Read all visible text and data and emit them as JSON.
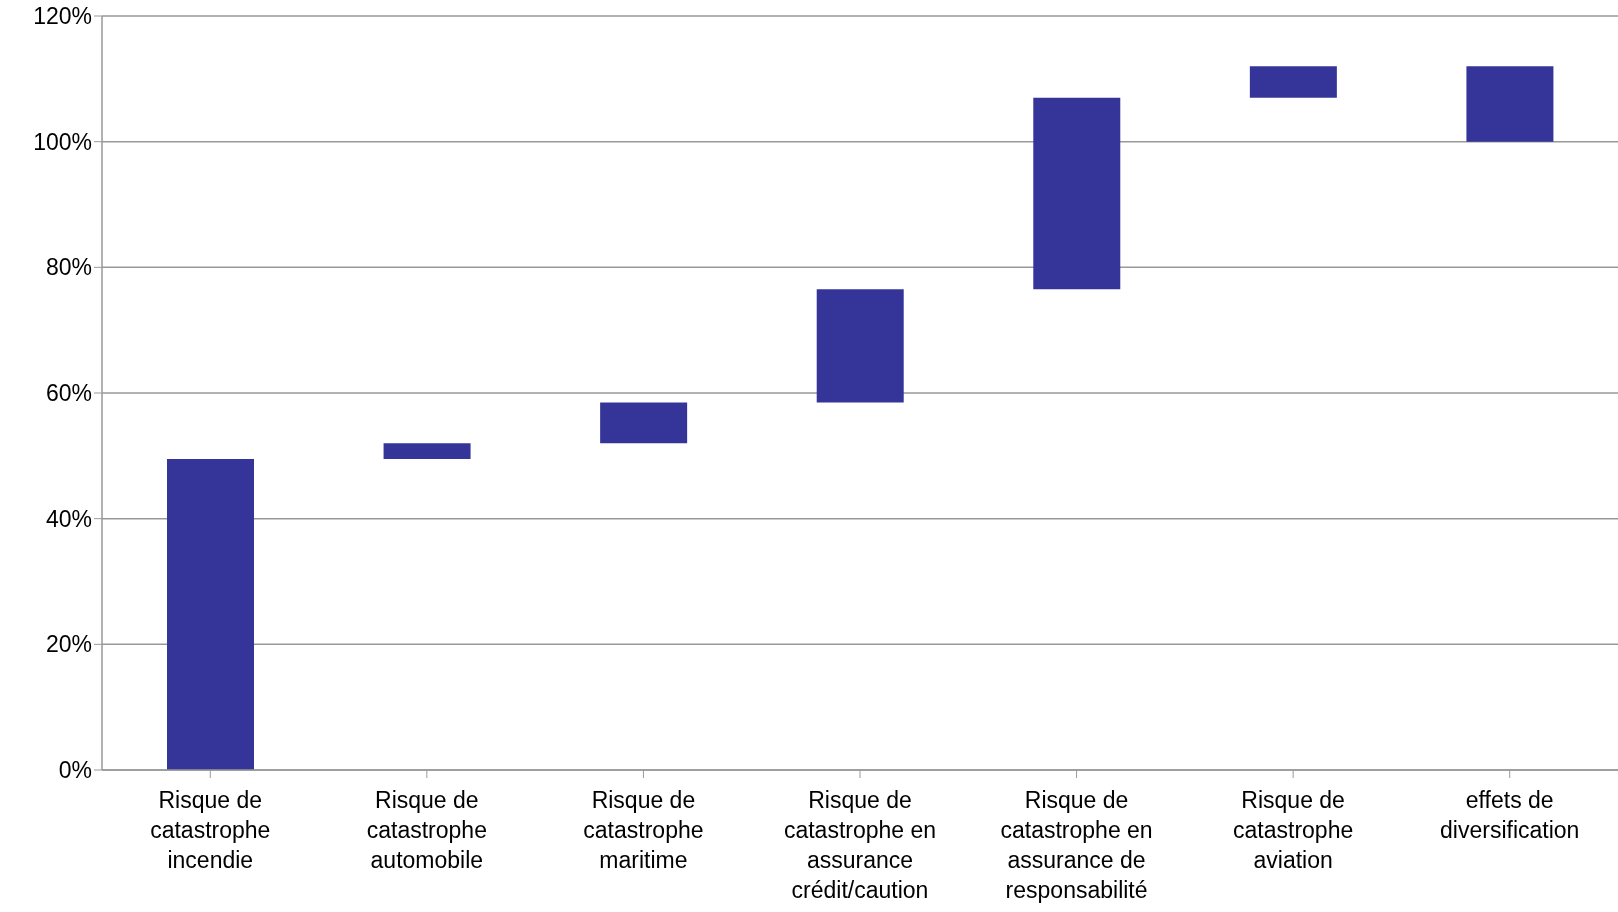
{
  "chart_data": {
    "type": "bar",
    "categories": [
      "Risque de catastrophe incendie",
      "Risque de catastrophe automobile",
      "Risque de catastrophe maritime",
      "Risque de catastrophe en assurance crédit/caution",
      "Risque de catastrophe en assurance de responsabilité",
      "Risque de catastrophe aviation",
      "effets de diversification"
    ],
    "values": [
      49.5,
      2.5,
      6.5,
      18,
      30.5,
      5,
      -12
    ],
    "base": [
      0,
      49.5,
      52,
      58.5,
      76.5,
      107,
      112
    ],
    "color": "#343499",
    "ylim": [
      0,
      120
    ],
    "yticks": [
      {
        "value": 0,
        "label": "0%"
      },
      {
        "value": 20,
        "label": "20%"
      },
      {
        "value": 40,
        "label": "40%"
      },
      {
        "value": 60,
        "label": "60%"
      },
      {
        "value": 80,
        "label": "80%"
      },
      {
        "value": 100,
        "label": "100%"
      },
      {
        "value": 120,
        "label": "120%"
      }
    ],
    "grid": "y"
  }
}
